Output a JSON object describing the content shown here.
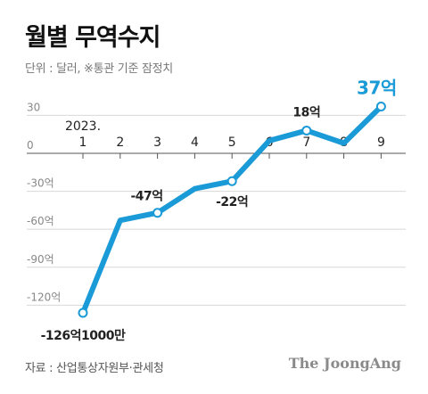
{
  "title": "월별 무역수지",
  "unit_note": "단위 : 달러, ※통관 기준 잠정치",
  "source": "자료 : 산업통상자원부·관세청",
  "brand": "The JoongAng",
  "year_label": "2023.",
  "colors": {
    "line": "#1a9ad6",
    "grid": "#d8d8d8",
    "axis": "#555555",
    "text": "#222222",
    "muted": "#777777"
  },
  "chart_data": {
    "type": "line",
    "title": "월별 무역수지",
    "xlabel": "",
    "ylabel": "",
    "categories": [
      "1",
      "2",
      "3",
      "4",
      "5",
      "6",
      "7",
      "8",
      "9"
    ],
    "y_ticks": [
      30,
      0,
      -30,
      -60,
      -90,
      -120
    ],
    "y_tick_labels": [
      "30",
      "0",
      "-30억",
      "-60억",
      "-90억",
      "-120억"
    ],
    "ylim": [
      -130,
      40
    ],
    "grid": true,
    "series": [
      {
        "values": [
          -126.1,
          -53,
          -47,
          -28,
          -22,
          10,
          18,
          8,
          37
        ]
      }
    ],
    "data_labels": [
      {
        "index": 0,
        "text": "-126억1000만"
      },
      {
        "index": 2,
        "text": "-47억"
      },
      {
        "index": 4,
        "text": "-22억"
      },
      {
        "index": 6,
        "text": "18억"
      },
      {
        "index": 8,
        "text": "37억"
      }
    ]
  }
}
